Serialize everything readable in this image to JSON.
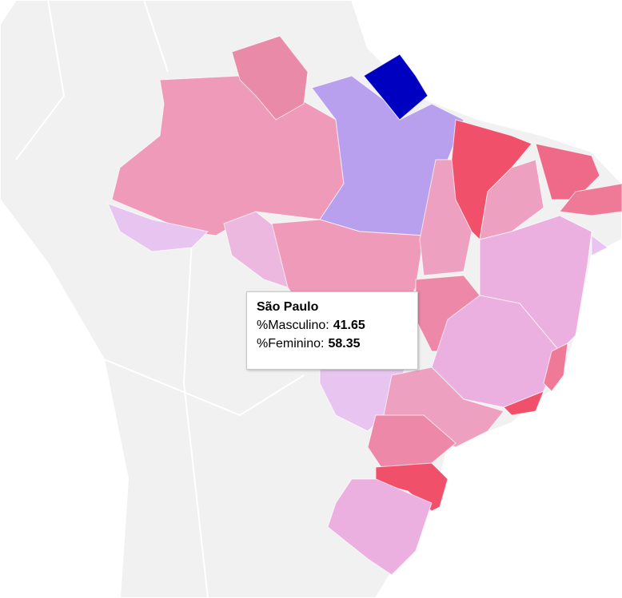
{
  "tooltip": {
    "title": "São Paulo",
    "rows": [
      {
        "label": "%Masculino:",
        "value": 41.65
      },
      {
        "label": "%Feminino:",
        "value": 58.35
      }
    ]
  }
}
